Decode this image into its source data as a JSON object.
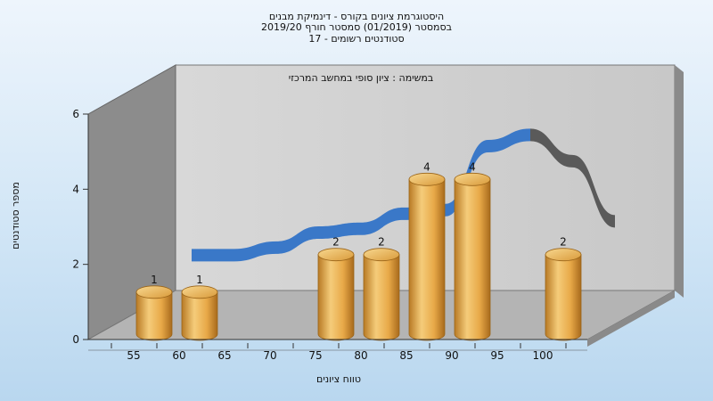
{
  "chart": {
    "title_lines": [
      "היסטוגרמת ציונים בקורס - דינמיקת מבנים",
      "בסמסטר  (01/2019)  סמסטר חורף 2019/20",
      "סטודנטים רשומים - 17"
    ],
    "annotation": "במשימה : ציון סופי במחשב המרכזי"
  },
  "chart_data": {
    "type": "bar",
    "style": "3d-cylinder",
    "title": "היסטוגרמת ציונים בקורס - דינמיקת מבנים",
    "xlabel": "טווח ציונים",
    "ylabel": "מספר סטודנטים",
    "categories": [
      "55",
      "60",
      "65",
      "70",
      "75",
      "80",
      "85",
      "90",
      "95",
      "100"
    ],
    "values": [
      1,
      1,
      0,
      0,
      2,
      2,
      4,
      4,
      0,
      2
    ],
    "data_labels": [
      "1",
      "1",
      "",
      "",
      "2",
      "2",
      "4",
      "4",
      "",
      "2"
    ],
    "ylim": [
      0,
      6
    ],
    "yticks": [
      0,
      2,
      4,
      6
    ],
    "grid": false,
    "trend_ribbon": {
      "type": "smooth-line",
      "description_values": [
        1.7,
        1.7,
        1.9,
        2.3,
        2.4,
        2.8,
        2.9,
        4.6,
        4.9,
        4.2,
        2.6
      ]
    },
    "colors": {
      "bar": "#e8a948",
      "ribbon_front": "#3a78c8",
      "ribbon_back": "#5a5a5a",
      "back_wall": "#c8c8c8",
      "side_wall": "#8c8c8c",
      "floor": "#b4b4b4"
    }
  }
}
